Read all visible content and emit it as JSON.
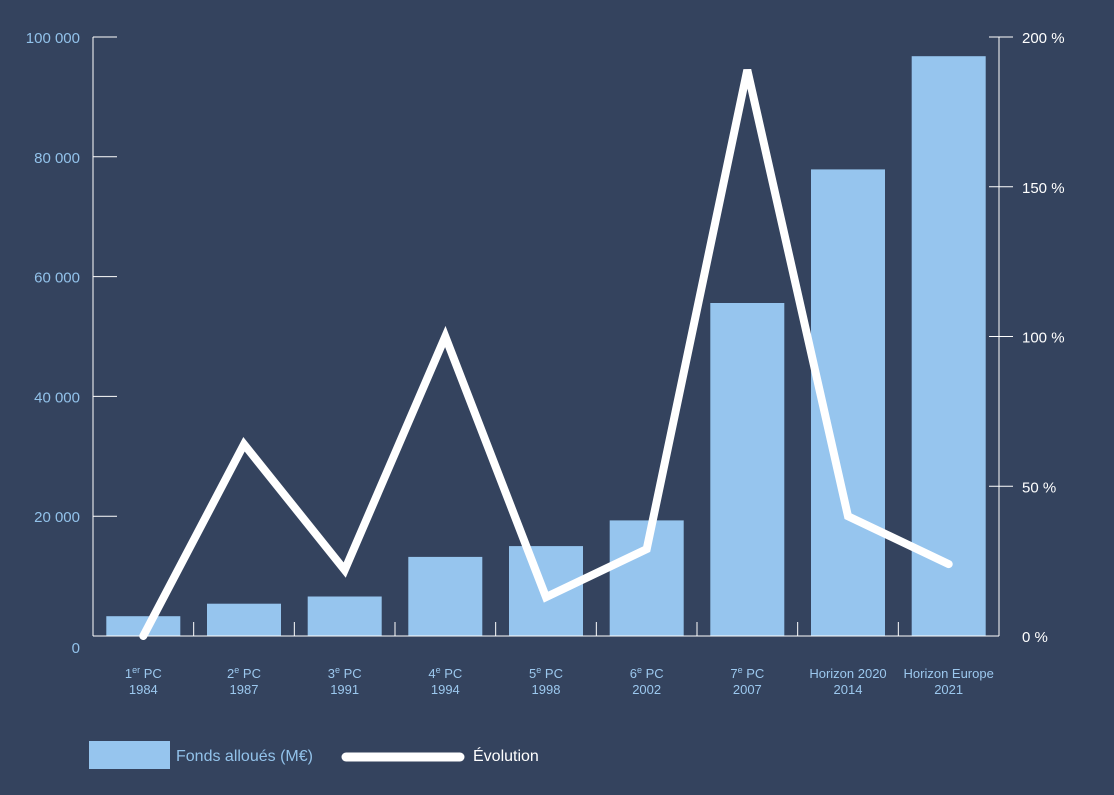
{
  "chart_data": {
    "type": "bar",
    "title": "",
    "categories": [
      [
        "1er PC",
        "1984"
      ],
      [
        "2e PC",
        "1987"
      ],
      [
        "3e PC",
        "1991"
      ],
      [
        "4e PC",
        "1994"
      ],
      [
        "5e PC",
        "1998"
      ],
      [
        "6e PC",
        "2002"
      ],
      [
        "7e PC",
        "2007"
      ],
      [
        "Horizon 2020",
        "2014"
      ],
      [
        "Horizon Europe",
        "2021"
      ]
    ],
    "series": [
      {
        "name": "Fonds alloués (M€)",
        "type": "bar",
        "axis": "left",
        "values": [
          3300,
          5400,
          6600,
          13200,
          15000,
          19300,
          55600,
          77900,
          96800
        ]
      },
      {
        "name": "Évolution",
        "type": "line",
        "axis": "right",
        "values": [
          0,
          64,
          22,
          100,
          13,
          29,
          189,
          40,
          24
        ]
      }
    ],
    "y_left": {
      "min": 0,
      "max": 100000,
      "ticks": [
        0,
        20000,
        40000,
        60000,
        80000,
        100000
      ],
      "tick_labels": [
        "0",
        "20 000",
        "40 000",
        "60 000",
        "80 000",
        "100 000"
      ]
    },
    "y_right": {
      "min": 0,
      "max": 200,
      "ticks": [
        0,
        50,
        100,
        150,
        200
      ],
      "tick_labels": [
        "0 %",
        "50 %",
        "100 %",
        "150 %",
        "200 %"
      ]
    },
    "legend": {
      "position": "bottom-left",
      "items": [
        "Fonds alloués (M€)",
        "Évolution"
      ]
    },
    "grid": false
  },
  "colors": {
    "background": "#34435e",
    "bar": "#96c5ee",
    "line": "#ffffff",
    "left_axis_text": "#92c2ea",
    "right_axis_text": "#ffffff",
    "category_text": "#9cc8ee",
    "axis_line": "#ffffff"
  }
}
